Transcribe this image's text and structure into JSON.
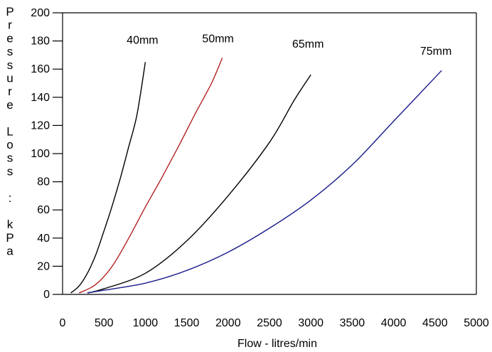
{
  "chart_data": {
    "type": "line",
    "title": "",
    "xlabel": "Flow - litres/min",
    "ylabel": "Pressure Loss : kPa",
    "xlim": [
      0,
      5000
    ],
    "ylim": [
      0,
      200
    ],
    "x_ticks": [
      0,
      500,
      1000,
      1500,
      2000,
      2500,
      3000,
      3500,
      4000,
      4500,
      5000
    ],
    "y_ticks": [
      0,
      20,
      40,
      60,
      80,
      100,
      120,
      140,
      160,
      180,
      200
    ],
    "grid": false,
    "series": [
      {
        "name": "40mm",
        "color": "#000000",
        "points": [
          [
            100,
            1
          ],
          [
            200,
            6
          ],
          [
            300,
            15
          ],
          [
            400,
            28
          ],
          [
            500,
            45
          ],
          [
            600,
            63
          ],
          [
            700,
            83
          ],
          [
            800,
            105
          ],
          [
            900,
            128
          ],
          [
            1000,
            165
          ]
        ]
      },
      {
        "name": "50mm",
        "color": "#b22222",
        "points": [
          [
            200,
            1
          ],
          [
            400,
            7
          ],
          [
            600,
            20
          ],
          [
            800,
            40
          ],
          [
            1000,
            62
          ],
          [
            1200,
            83
          ],
          [
            1400,
            105
          ],
          [
            1600,
            128
          ],
          [
            1800,
            150
          ],
          [
            1930,
            168
          ]
        ]
      },
      {
        "name": "65mm",
        "color": "#000000",
        "points": [
          [
            300,
            1
          ],
          [
            500,
            4
          ],
          [
            1000,
            15
          ],
          [
            1500,
            38
          ],
          [
            2000,
            70
          ],
          [
            2500,
            108
          ],
          [
            2800,
            138
          ],
          [
            3000,
            156
          ]
        ]
      },
      {
        "name": "75mm",
        "color": "#1a1a8c",
        "points": [
          [
            300,
            1
          ],
          [
            500,
            3
          ],
          [
            1000,
            8
          ],
          [
            1500,
            17
          ],
          [
            2000,
            30
          ],
          [
            2500,
            47
          ],
          [
            3000,
            67
          ],
          [
            3500,
            92
          ],
          [
            4000,
            123
          ],
          [
            4580,
            159
          ]
        ]
      }
    ]
  }
}
